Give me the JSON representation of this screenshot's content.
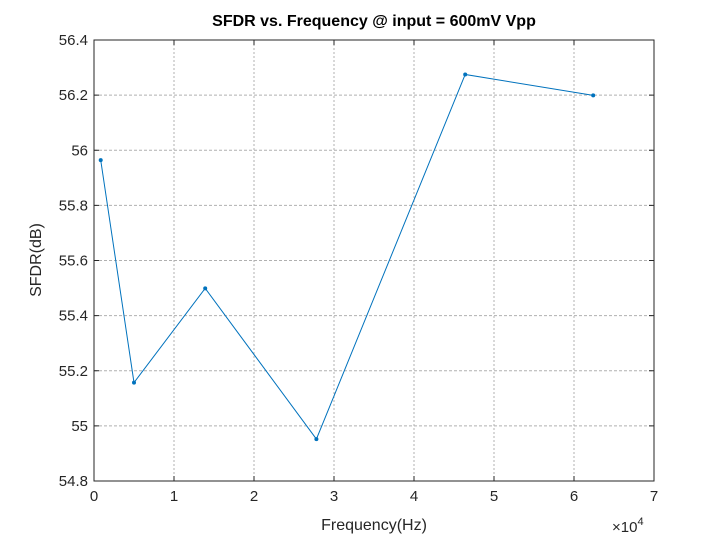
{
  "chart_data": {
    "type": "line",
    "title": "SFDR vs. Frequency @ input = 600mV Vpp",
    "xlabel": "Frequency(Hz)",
    "ylabel": "SFDR(dB)",
    "x_exponent_label": "×10",
    "x_exponent_power": "4",
    "xlim": [
      0,
      70000
    ],
    "ylim": [
      54.8,
      56.4
    ],
    "xticks": [
      0,
      10000,
      20000,
      30000,
      40000,
      50000,
      60000,
      70000
    ],
    "xtick_labels": [
      "0",
      "1",
      "2",
      "3",
      "4",
      "5",
      "6",
      "7"
    ],
    "yticks": [
      54.8,
      55,
      55.2,
      55.4,
      55.6,
      55.8,
      56,
      56.2,
      56.4
    ],
    "ytick_labels": [
      "54.8",
      "55",
      "55.2",
      "55.4",
      "55.6",
      "55.8",
      "56",
      "56.2",
      "56.4"
    ],
    "grid": true,
    "series": [
      {
        "color": "#0072BD",
        "marker": "dot",
        "x": [
          840,
          5000,
          13900,
          27800,
          46400,
          62400
        ],
        "y": [
          55.964,
          55.157,
          55.499,
          54.952,
          56.275,
          56.199
        ]
      }
    ]
  }
}
